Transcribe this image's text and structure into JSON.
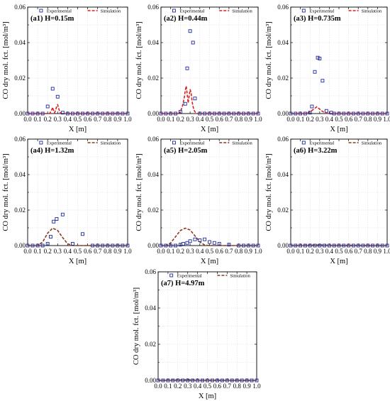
{
  "chart_data": [
    {
      "type": "scatter",
      "panel_label": "(a1) H=0.15m",
      "xlabel": "X [m]",
      "ylabel": "CO dry mol. fct. [mol/m³]",
      "xlim": [
        0,
        1
      ],
      "ylim": [
        0,
        0.06
      ],
      "xticks": [
        "0.0",
        "0.1",
        "0.2",
        "0.3",
        "0.4",
        "0.5",
        "0.6",
        "0.7",
        "0.8",
        "0.9",
        "1.0"
      ],
      "yticks": [
        "0.00",
        "0.02",
        "0.04",
        "0.06"
      ],
      "grid": true,
      "legend": "top-right",
      "series": [
        {
          "name": "Experimental",
          "marker": "square",
          "color": "#1f2a9c",
          "x": [
            0.0,
            0.05,
            0.1,
            0.15,
            0.2,
            0.25,
            0.3,
            0.35,
            0.4,
            0.45,
            0.5,
            0.55,
            0.6,
            0.65,
            0.7,
            0.75,
            0.8,
            0.85,
            0.9,
            0.95,
            1.0
          ],
          "y": [
            0,
            0,
            0,
            0,
            0.004,
            0.014,
            0.0095,
            0.0005,
            0,
            0,
            0,
            0,
            0,
            0,
            0,
            0,
            0,
            0,
            0,
            0,
            0
          ]
        },
        {
          "name": "Simulation",
          "line": "dashed",
          "color": "#d62020",
          "x": [
            0.0,
            0.2,
            0.22,
            0.24,
            0.25,
            0.26,
            0.27,
            0.28,
            0.29,
            0.3,
            0.31,
            0.32,
            0.33,
            0.35,
            0.4,
            1.0
          ],
          "y": [
            0,
            0,
            0,
            0.002,
            0.0035,
            0.0015,
            0.0005,
            0.002,
            0.004,
            0.005,
            0.003,
            0.001,
            0.0002,
            0,
            0,
            0
          ]
        }
      ]
    },
    {
      "type": "scatter",
      "panel_label": "(a2) H=0.44m",
      "xlabel": "X [m]",
      "ylabel": "CO dry mol. fct. [mol/m³]",
      "xlim": [
        0,
        1
      ],
      "ylim": [
        0,
        0.06
      ],
      "xticks": [
        "0.0",
        "0.1",
        "0.2",
        "0.3",
        "0.4",
        "0.5",
        "0.6",
        "0.7",
        "0.8",
        "0.9",
        "1.0"
      ],
      "yticks": [
        "0.00",
        "0.02",
        "0.04",
        "0.06"
      ],
      "grid": true,
      "legend": "top-right",
      "series": [
        {
          "name": "Experimental",
          "marker": "square",
          "color": "#1f2a9c",
          "x": [
            0.0,
            0.05,
            0.1,
            0.15,
            0.2,
            0.25,
            0.27,
            0.3,
            0.33,
            0.35,
            0.4,
            0.45,
            0.5,
            0.55,
            0.6,
            0.65,
            0.7,
            0.75,
            0.8,
            0.85,
            0.9,
            0.95,
            1.0
          ],
          "y": [
            0,
            0,
            0,
            0,
            0.001,
            0.0055,
            0.0255,
            0.0465,
            0.04,
            0.0085,
            0,
            0,
            0,
            0,
            0,
            0,
            0,
            0,
            0,
            0,
            0,
            0,
            0
          ]
        },
        {
          "name": "Simulation",
          "line": "dashed",
          "color": "#d62020",
          "x": [
            0.0,
            0.18,
            0.2,
            0.22,
            0.24,
            0.25,
            0.26,
            0.27,
            0.28,
            0.29,
            0.3,
            0.31,
            0.32,
            0.33,
            0.34,
            0.35,
            0.37,
            0.4,
            1.0
          ],
          "y": [
            0,
            0,
            0.001,
            0.004,
            0.009,
            0.013,
            0.0155,
            0.011,
            0.006,
            0.01,
            0.0135,
            0.012,
            0.007,
            0.004,
            0.002,
            0.001,
            0,
            0,
            0
          ]
        }
      ]
    },
    {
      "type": "scatter",
      "panel_label": "(a3) H=0.735m",
      "xlabel": "X [m]",
      "ylabel": "CO dry mol. fct. [mol/m³]",
      "xlim": [
        0,
        1
      ],
      "ylim": [
        0,
        0.06
      ],
      "xticks": [
        "0.0",
        "0.1",
        "0.2",
        "0.3",
        "0.4",
        "0.5",
        "0.6",
        "0.7",
        "0.8",
        "0.9",
        "1.0"
      ],
      "yticks": [
        "0.00",
        "0.02",
        "0.04",
        "0.06"
      ],
      "grid": true,
      "legend": "top-right",
      "series": [
        {
          "name": "Experimental",
          "marker": "square",
          "color": "#1f2a9c",
          "x": [
            0.0,
            0.05,
            0.1,
            0.15,
            0.2,
            0.22,
            0.25,
            0.28,
            0.3,
            0.33,
            0.37,
            0.42,
            0.45,
            0.5,
            0.55,
            0.6,
            0.65,
            0.7,
            0.75,
            0.8,
            0.85,
            0.9,
            0.95,
            1.0
          ],
          "y": [
            0,
            0,
            0,
            0,
            0.0005,
            0.004,
            0.0235,
            0.0315,
            0.031,
            0.0185,
            0.0015,
            0.0005,
            0,
            0,
            0,
            0,
            0,
            0,
            0,
            0,
            0,
            0,
            0,
            0
          ]
        },
        {
          "name": "Simulation",
          "line": "dashed",
          "color": "#d62020",
          "x": [
            0.0,
            0.15,
            0.2,
            0.24,
            0.27,
            0.3,
            0.33,
            0.36,
            0.4,
            1.0
          ],
          "y": [
            0,
            0,
            0.001,
            0.0025,
            0.0038,
            0.0025,
            0.0012,
            0.0002,
            0,
            0
          ]
        }
      ]
    },
    {
      "type": "scatter",
      "panel_label": "(a4) H=1.32m",
      "xlabel": "X [m]",
      "ylabel": "CO dry mol. fct. [mol/m³]",
      "xlim": [
        0,
        1
      ],
      "ylim": [
        0,
        0.06
      ],
      "xticks": [
        "0.0",
        "0.1",
        "0.2",
        "0.3",
        "0.4",
        "0.5",
        "0.6",
        "0.7",
        "0.8",
        "0.9",
        "1.0"
      ],
      "yticks": [
        "0.00",
        "0.02",
        "0.04",
        "0.06"
      ],
      "grid": true,
      "legend": "top-right",
      "series": [
        {
          "name": "Experimental",
          "marker": "square",
          "color": "#1f2a9c",
          "x": [
            0.0,
            0.05,
            0.1,
            0.15,
            0.2,
            0.23,
            0.26,
            0.29,
            0.35,
            0.45,
            0.55,
            0.65,
            0.7,
            0.75,
            0.8,
            0.85,
            0.9,
            0.95,
            1.0
          ],
          "y": [
            0,
            0,
            0,
            0,
            0.001,
            0.005,
            0.0135,
            0.015,
            0.0175,
            0.001,
            0.0065,
            0,
            0,
            0,
            0,
            0,
            0,
            0,
            0
          ]
        },
        {
          "name": "Simulation",
          "line": "dashed",
          "color": "#8b3a1a",
          "x": [
            0.0,
            0.1,
            0.15,
            0.2,
            0.25,
            0.3,
            0.35,
            0.4,
            0.45,
            0.5,
            1.0
          ],
          "y": [
            0,
            0,
            0.002,
            0.007,
            0.0098,
            0.0085,
            0.0045,
            0.001,
            0,
            0,
            0
          ]
        }
      ]
    },
    {
      "type": "scatter",
      "panel_label": "(a5) H=2.05m",
      "xlabel": "X [m]",
      "ylabel": "CO dry mol. fct. [mol/m³]",
      "xlim": [
        0,
        1
      ],
      "ylim": [
        0,
        0.06
      ],
      "xticks": [
        "0.0",
        "0.1",
        "0.2",
        "0.3",
        "0.4",
        "0.5",
        "0.6",
        "0.7",
        "0.8",
        "0.9",
        "1.0"
      ],
      "yticks": [
        "0.00",
        "0.02",
        "0.04",
        "0.06"
      ],
      "grid": true,
      "legend": "top-right",
      "series": [
        {
          "name": "Experimental",
          "marker": "square",
          "color": "#1f2a9c",
          "x": [
            0.0,
            0.05,
            0.1,
            0.15,
            0.2,
            0.23,
            0.27,
            0.3,
            0.35,
            0.4,
            0.45,
            0.5,
            0.55,
            0.6,
            0.7,
            0.8,
            0.85,
            0.9,
            0.95,
            1.0
          ],
          "y": [
            0,
            0,
            0,
            0,
            0.0005,
            0.001,
            0.0015,
            0.0025,
            0.0035,
            0.003,
            0.0035,
            0.002,
            0.0015,
            0.001,
            0.0005,
            0,
            0,
            0,
            0,
            0
          ]
        },
        {
          "name": "Simulation",
          "line": "dashed",
          "color": "#8b3a1a",
          "x": [
            0.0,
            0.05,
            0.1,
            0.15,
            0.2,
            0.25,
            0.3,
            0.35,
            0.4,
            0.45,
            0.5,
            1.0
          ],
          "y": [
            0,
            0,
            0.0015,
            0.005,
            0.0085,
            0.0098,
            0.0088,
            0.0055,
            0.002,
            0.0003,
            0,
            0
          ]
        }
      ]
    },
    {
      "type": "scatter",
      "panel_label": "(a6) H=3.22m",
      "xlabel": "X [m]",
      "ylabel": "CO dry mol. fct. [mol/m³]",
      "xlim": [
        0,
        1
      ],
      "ylim": [
        0,
        0.06
      ],
      "xticks": [
        "0.0",
        "0.1",
        "0.2",
        "0.3",
        "0.4",
        "0.5",
        "0.6",
        "0.7",
        "0.8",
        "0.9",
        "1.0"
      ],
      "yticks": [
        "0.00",
        "0.02",
        "0.04",
        "0.06"
      ],
      "grid": true,
      "legend": "top-right",
      "series": [
        {
          "name": "Experimental",
          "marker": "square",
          "color": "#1f2a9c",
          "x": [
            0.0,
            0.05,
            0.1,
            0.15,
            0.2,
            0.25,
            0.3,
            0.35,
            0.4,
            0.45,
            0.5,
            0.55,
            0.6,
            0.65,
            0.7,
            0.75,
            0.8,
            0.85,
            0.9,
            0.95,
            1.0
          ],
          "y": [
            0,
            0,
            0,
            0,
            0,
            0,
            0,
            0,
            0,
            0,
            0,
            0,
            0,
            0,
            0,
            0,
            0,
            0,
            0,
            0,
            0
          ]
        },
        {
          "name": "Simulation",
          "line": "dashed",
          "color": "#8b3a1a",
          "x": [
            0.0,
            0.2,
            0.3,
            0.4,
            1.0
          ],
          "y": [
            0,
            0.0002,
            0.0003,
            0.0001,
            0
          ]
        }
      ]
    },
    {
      "type": "scatter",
      "panel_label": "(a7) H=4.97m",
      "xlabel": "X [m]",
      "ylabel": "CO dry mol. fct. [mol/m³]",
      "xlim": [
        0,
        1
      ],
      "ylim": [
        0,
        0.06
      ],
      "xticks": [
        "0.0",
        "0.1",
        "0.2",
        "0.3",
        "0.4",
        "0.5",
        "0.6",
        "0.7",
        "0.8",
        "0.9",
        "1.0"
      ],
      "yticks": [
        "0.00",
        "0.02",
        "0.04",
        "0.06"
      ],
      "grid": true,
      "legend": "top-right",
      "series": [
        {
          "name": "Experimental",
          "marker": "square",
          "color": "#1f2a9c",
          "x": [
            0.0,
            0.05,
            0.1,
            0.15,
            0.2,
            0.25,
            0.3,
            0.35,
            0.4,
            0.45,
            0.5,
            0.55,
            0.6,
            0.65,
            0.7,
            0.75,
            0.8,
            0.85,
            0.9,
            0.95,
            1.0
          ],
          "y": [
            0,
            0,
            0,
            0,
            0,
            0,
            0,
            0,
            0,
            0,
            0,
            0,
            0,
            0,
            0,
            0,
            0,
            0,
            0,
            0,
            0
          ]
        },
        {
          "name": "Simulation",
          "line": "dashed",
          "color": "#8b3a1a",
          "x": [
            0.0,
            0.2,
            0.3,
            0.4,
            1.0
          ],
          "y": [
            0,
            0.0002,
            0.0003,
            0.0001,
            0
          ]
        }
      ]
    }
  ]
}
